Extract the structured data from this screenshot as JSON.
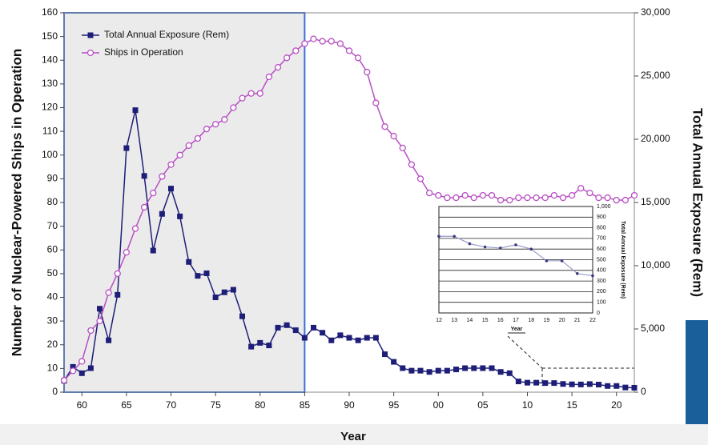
{
  "chart_data": [
    {
      "type": "line",
      "xlabel": "Year",
      "ylabel": "Number of Nuclear-Powered Ships in Operation",
      "y2label": "Total Annual Exposure (Rem)",
      "x": [
        1958,
        1959,
        1960,
        1961,
        1962,
        1963,
        1964,
        1965,
        1966,
        1967,
        1968,
        1969,
        1970,
        1971,
        1972,
        1973,
        1974,
        1975,
        1976,
        1977,
        1978,
        1979,
        1980,
        1981,
        1982,
        1983,
        1984,
        1985,
        1986,
        1987,
        1988,
        1989,
        1990,
        1991,
        1992,
        1993,
        1994,
        1995,
        1996,
        1997,
        1998,
        1999,
        2000,
        2001,
        2002,
        2003,
        2004,
        2005,
        2006,
        2007,
        2008,
        2009,
        2010,
        2011,
        2012,
        2013,
        2014,
        2015,
        2016,
        2017,
        2018,
        2019,
        2020,
        2021,
        2022
      ],
      "series": [
        {
          "name": "Total Annual Exposure (Rem)",
          "color": "#1e1e78",
          "marker": "square",
          "axis": "y2",
          "values": [
            900,
            2000,
            1500,
            1900,
            6600,
            4100,
            7700,
            19300,
            22300,
            17100,
            11200,
            14100,
            16100,
            13900,
            10300,
            9200,
            9400,
            7500,
            7900,
            8100,
            6000,
            3600,
            3900,
            3700,
            5100,
            5300,
            4900,
            4300,
            5100,
            4700,
            4100,
            4500,
            4300,
            4100,
            4300,
            4300,
            3000,
            2400,
            1900,
            1700,
            1700,
            1600,
            1700,
            1700,
            1800,
            1900,
            1900,
            1900,
            1900,
            1600,
            1500,
            850,
            750,
            750,
            720,
            720,
            650,
            620,
            610,
            640,
            600,
            490,
            490,
            370,
            350
          ]
        },
        {
          "name": "Ships in Operation",
          "color": "#b84fc4",
          "marker": "circle",
          "values": [
            5,
            9,
            13,
            26,
            30,
            42,
            50,
            59,
            69,
            78,
            84,
            91,
            96,
            100,
            104,
            107,
            111,
            113,
            115,
            120,
            124,
            126,
            126,
            133,
            137,
            141,
            144,
            147,
            149,
            148,
            148,
            147,
            144,
            141,
            135,
            122,
            112,
            108,
            103,
            96,
            90,
            84,
            83,
            82,
            82,
            83,
            82,
            83,
            83,
            81,
            81,
            82,
            82,
            82,
            82,
            83,
            82,
            83,
            86,
            84,
            82,
            82,
            81,
            81,
            83
          ]
        }
      ],
      "xlim": [
        1958,
        2022
      ],
      "xticks": [
        {
          "value": 1960,
          "label": "60"
        },
        {
          "value": 1965,
          "label": "65"
        },
        {
          "value": 1970,
          "label": "70"
        },
        {
          "value": 1975,
          "label": "75"
        },
        {
          "value": 1980,
          "label": "80"
        },
        {
          "value": 1985,
          "label": "85"
        },
        {
          "value": 1990,
          "label": "90"
        },
        {
          "value": 1995,
          "label": "95"
        },
        {
          "value": 2000,
          "label": "00"
        },
        {
          "value": 2005,
          "label": "05"
        },
        {
          "value": 2010,
          "label": "10"
        },
        {
          "value": 2015,
          "label": "15"
        },
        {
          "value": 2020,
          "label": "20"
        }
      ],
      "ylim": [
        0,
        160
      ],
      "yticks": [
        0,
        10,
        20,
        30,
        40,
        50,
        60,
        70,
        80,
        90,
        100,
        110,
        120,
        130,
        140,
        150,
        160
      ],
      "y2lim": [
        0,
        30000
      ],
      "y2ticks": [
        0,
        {
          "value": 5000,
          "label": "5,000"
        },
        {
          "value": 10000,
          "label": "10,000"
        },
        {
          "value": 15000,
          "label": "15,000"
        },
        {
          "value": 20000,
          "label": "20,000"
        },
        {
          "value": 25000,
          "label": "25,000"
        },
        {
          "value": 30000,
          "label": "30,000"
        }
      ],
      "highlight": {
        "xlim": [
          1958,
          1985
        ],
        "color": "#ebebeb",
        "border": "#3b6fd4"
      },
      "legend": "upper left"
    },
    {
      "type": "line",
      "xlabel": "Year",
      "ylabel": "Total Annual Exposure (Rem)",
      "categories": [
        "12",
        "13",
        "14",
        "15",
        "16",
        "17",
        "18",
        "19",
        "20",
        "21",
        "22"
      ],
      "values": [
        720,
        720,
        650,
        620,
        610,
        640,
        600,
        490,
        490,
        370,
        350
      ],
      "color": "#3a3a80",
      "ylim": [
        0,
        1000
      ],
      "yticks": [
        0,
        100,
        200,
        300,
        400,
        500,
        600,
        700,
        800,
        900,
        {
          "value": 1000,
          "label": "1,000"
        }
      ],
      "grid": true
    }
  ]
}
